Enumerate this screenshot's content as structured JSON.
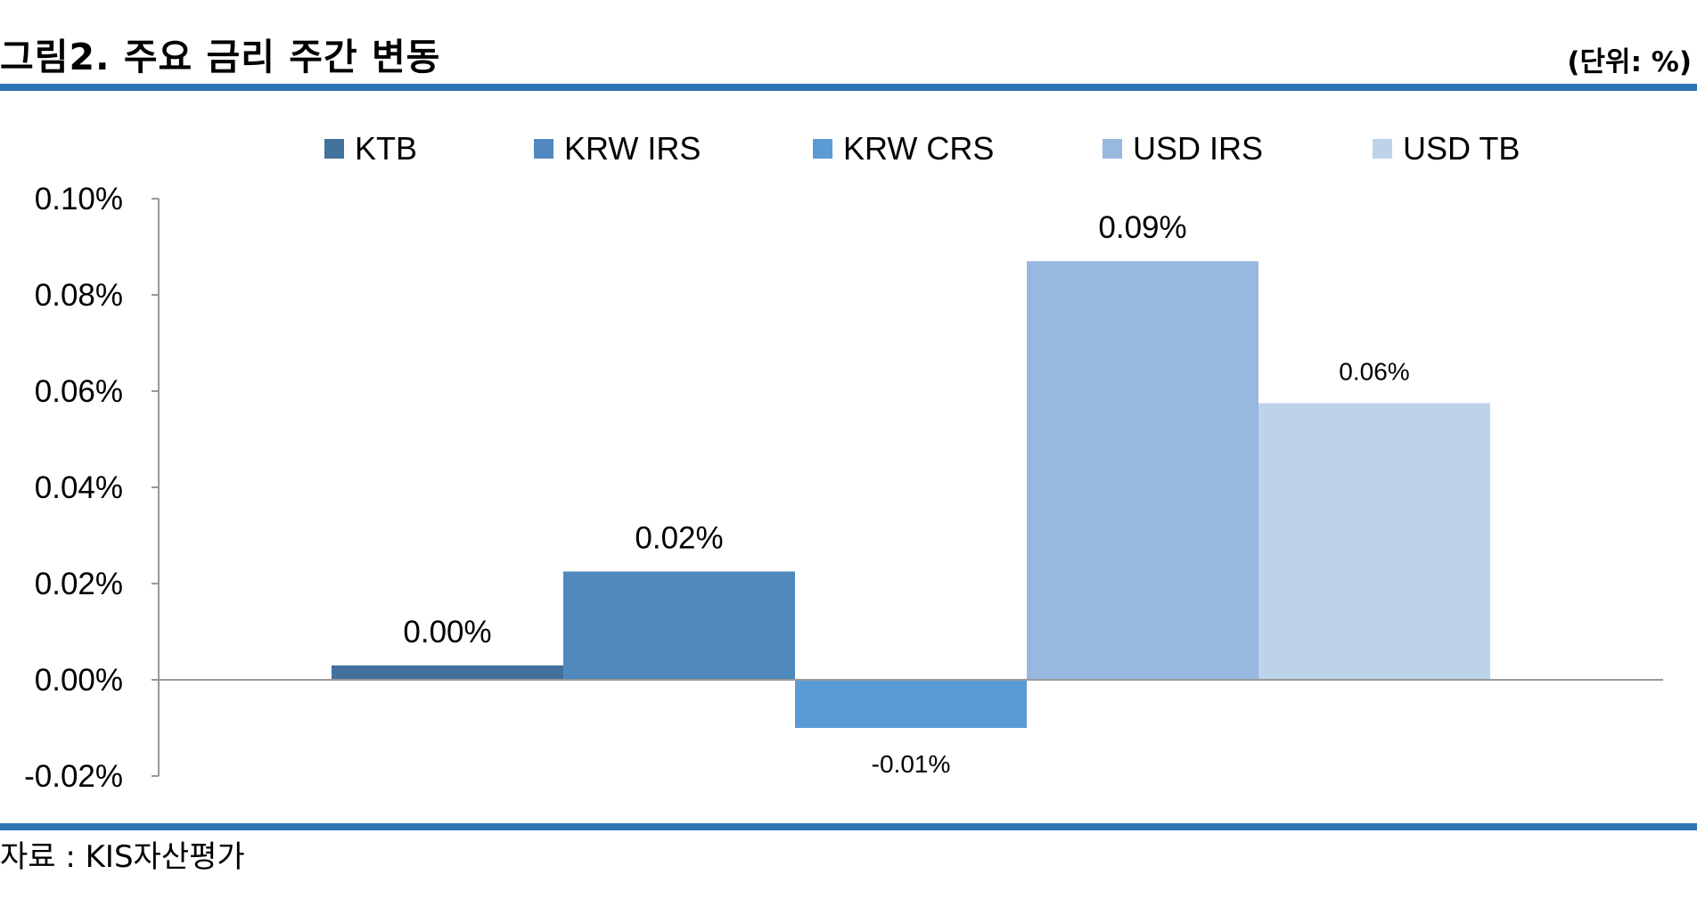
{
  "header": {
    "title": "그림2. 주요 금리 주간 변동",
    "unit": "(단위: %)"
  },
  "footer": {
    "source": "자료 : KIS자산평가"
  },
  "colors": {
    "rule": "#2e75b6",
    "axis": "#999999"
  },
  "chart_data": {
    "type": "bar",
    "title": "",
    "xlabel": "",
    "ylabel": "",
    "ylim": [
      -0.02,
      0.1
    ],
    "yticks": [
      0.1,
      0.08,
      0.06,
      0.04,
      0.02,
      0.0,
      -0.02
    ],
    "ytick_labels": [
      "0.10%",
      "0.08%",
      "0.06%",
      "0.04%",
      "0.02%",
      "0.00%",
      "-0.02%"
    ],
    "grid": false,
    "legend_position": "top",
    "series": [
      {
        "name": "KTB",
        "value": 0.003,
        "label": "0.00%",
        "color": "#41719c"
      },
      {
        "name": "KRW IRS",
        "value": 0.0225,
        "label": "0.02%",
        "color": "#5089bd"
      },
      {
        "name": "KRW CRS",
        "value": -0.01,
        "label": "-0.01%",
        "color": "#5b9bd5"
      },
      {
        "name": "USD IRS",
        "value": 0.087,
        "label": "0.09%",
        "color": "#98b8df"
      },
      {
        "name": "USD TB",
        "value": 0.0575,
        "label": "0.06%",
        "color": "#bdd3ea"
      }
    ]
  }
}
